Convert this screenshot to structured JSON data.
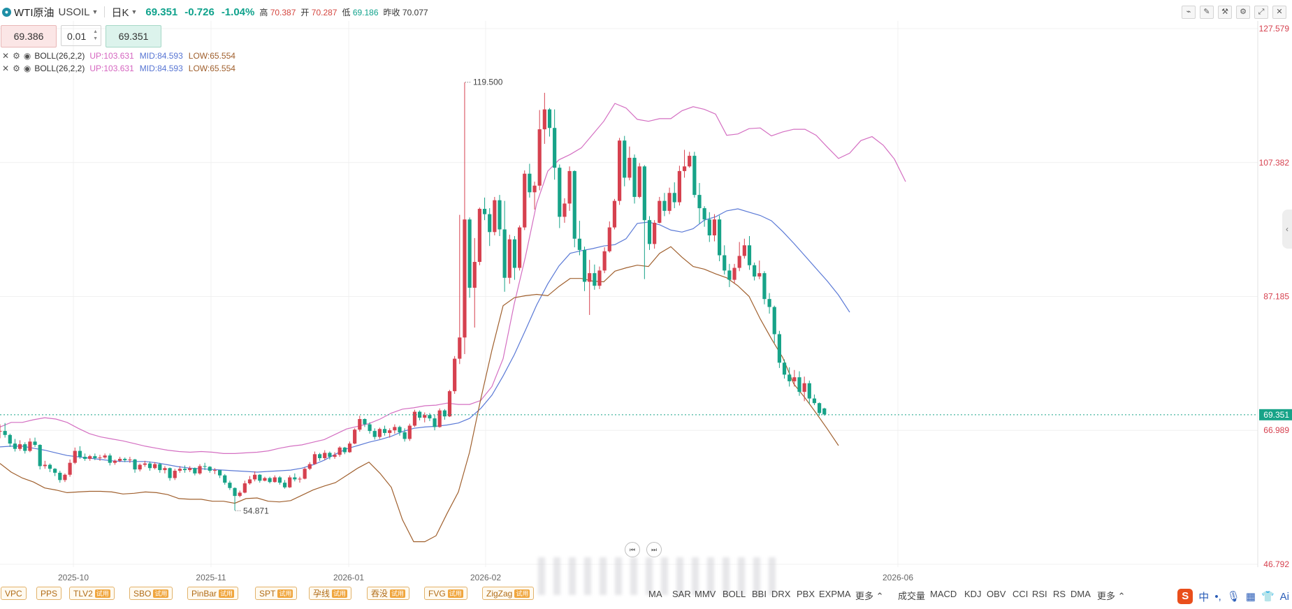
{
  "header": {
    "symbol_name": "WTI原油",
    "symbol_code": "USOIL",
    "period": "日K",
    "last_price": "69.351",
    "change": "-0.726",
    "change_pct": "-1.04%",
    "high_label": "高",
    "high_value": "70.387",
    "open_label": "开",
    "open_value": "70.287",
    "low_label": "低",
    "low_value": "69.186",
    "prev_close_label": "昨收",
    "prev_close_value": "70.077"
  },
  "order": {
    "sell_price": "69.386",
    "quantity": "0.01",
    "buy_price": "69.351"
  },
  "indicators": [
    {
      "name": "BOLL(26,2,2)",
      "up": "UP:103.631",
      "mid": "MID:84.593",
      "low": "LOW:65.554"
    },
    {
      "name": "BOLL(26,2,2)",
      "up": "UP:103.631",
      "mid": "MID:84.593",
      "low": "LOW:65.554"
    }
  ],
  "chart_data": {
    "type": "candlestick",
    "symbol": "USOIL",
    "x_tick_labels": [
      "2025-10",
      "2025-11",
      "2026-01",
      "2026-02",
      "2026-06"
    ],
    "y_tick_labels": [
      "127.579",
      "107.382",
      "87.185",
      "66.989",
      "46.792"
    ],
    "y_ticks": [
      127.579,
      107.382,
      87.185,
      66.989,
      46.792
    ],
    "ylim": [
      46.792,
      127.579
    ],
    "current_price_label": "69.351",
    "current_price": 69.351,
    "annotations": [
      {
        "text": "119.500",
        "value": 119.5
      },
      {
        "text": "54.871",
        "value": 54.871
      }
    ],
    "colors": {
      "up": "#d6414f",
      "down": "#17a388",
      "boll_up": "#d46fc2",
      "boll_mid": "#5a79d6",
      "boll_low": "#a0602e",
      "last_price_bg": "#17a388",
      "axis_text": "#d6414f"
    },
    "candles": [
      [
        66.9,
        67.9,
        65.8,
        66.9
      ],
      [
        66.9,
        68.1,
        65.9,
        66.3
      ],
      [
        66.3,
        66.5,
        64.5,
        65.0
      ],
      [
        65.0,
        65.7,
        63.8,
        64.2
      ],
      [
        64.2,
        65.5,
        63.9,
        64.9
      ],
      [
        64.9,
        65.2,
        63.5,
        63.9
      ],
      [
        63.9,
        65.8,
        63.7,
        65.3
      ],
      [
        65.3,
        65.9,
        64.5,
        64.8
      ],
      [
        64.8,
        64.9,
        61.1,
        61.6
      ],
      [
        61.6,
        62.4,
        61.2,
        61.8
      ],
      [
        61.8,
        62.0,
        60.7,
        61.2
      ],
      [
        61.2,
        61.3,
        60.1,
        60.6
      ],
      [
        60.6,
        60.9,
        59.1,
        59.5
      ],
      [
        59.5,
        60.5,
        59.2,
        60.3
      ],
      [
        60.3,
        62.6,
        60.0,
        62.1
      ],
      [
        62.1,
        64.4,
        61.9,
        63.9
      ],
      [
        63.9,
        64.6,
        62.7,
        63.0
      ],
      [
        63.0,
        63.5,
        62.4,
        62.7
      ],
      [
        62.7,
        63.3,
        62.4,
        63.1
      ],
      [
        63.1,
        63.5,
        62.5,
        62.8
      ],
      [
        62.8,
        63.3,
        62.4,
        62.9
      ],
      [
        62.9,
        63.5,
        62.7,
        63.2
      ],
      [
        63.2,
        63.5,
        61.7,
        62.1
      ],
      [
        62.1,
        62.6,
        61.8,
        62.4
      ],
      [
        62.4,
        63.0,
        62.2,
        62.7
      ],
      [
        62.7,
        62.9,
        62.2,
        62.5
      ],
      [
        62.5,
        63.0,
        62.1,
        62.6
      ],
      [
        62.6,
        62.7,
        60.6,
        61.1
      ],
      [
        61.1,
        62.0,
        60.8,
        61.8
      ],
      [
        61.8,
        62.4,
        61.5,
        62.0
      ],
      [
        62.0,
        62.3,
        60.9,
        61.3
      ],
      [
        61.3,
        62.2,
        61.1,
        61.9
      ],
      [
        61.9,
        62.1,
        60.6,
        61.0
      ],
      [
        61.0,
        61.6,
        60.5,
        61.3
      ],
      [
        61.3,
        61.4,
        59.4,
        59.8
      ],
      [
        59.8,
        61.2,
        59.5,
        60.9
      ],
      [
        60.9,
        61.6,
        60.6,
        61.2
      ],
      [
        61.2,
        61.7,
        60.6,
        61.0
      ],
      [
        61.0,
        61.6,
        60.7,
        61.3
      ],
      [
        61.3,
        61.4,
        60.2,
        60.5
      ],
      [
        60.5,
        61.9,
        60.3,
        61.6
      ],
      [
        61.6,
        62.1,
        61.0,
        61.5
      ],
      [
        61.5,
        61.6,
        60.6,
        60.9
      ],
      [
        60.9,
        61.3,
        60.4,
        61.0
      ],
      [
        61.0,
        61.0,
        59.8,
        60.2
      ],
      [
        60.2,
        60.4,
        58.8,
        59.1
      ],
      [
        59.1,
        59.4,
        58.0,
        58.3
      ],
      [
        58.3,
        58.4,
        54.9,
        57.1
      ],
      [
        57.1,
        57.9,
        56.9,
        57.6
      ],
      [
        57.6,
        59.4,
        57.5,
        59.0
      ],
      [
        59.0,
        60.1,
        58.8,
        59.6
      ],
      [
        59.6,
        60.8,
        59.3,
        60.3
      ],
      [
        60.3,
        60.4,
        59.1,
        59.4
      ],
      [
        59.4,
        60.0,
        59.3,
        59.8
      ],
      [
        59.8,
        60.0,
        59.0,
        59.2
      ],
      [
        59.2,
        60.2,
        59.1,
        59.9
      ],
      [
        59.9,
        60.1,
        58.8,
        59.1
      ],
      [
        59.1,
        59.5,
        58.2,
        58.4
      ],
      [
        58.4,
        60.2,
        58.3,
        59.9
      ],
      [
        59.9,
        60.5,
        59.3,
        59.6
      ],
      [
        59.6,
        60.0,
        59.1,
        59.7
      ],
      [
        59.7,
        61.4,
        59.6,
        61.2
      ],
      [
        61.2,
        62.2,
        61.0,
        61.9
      ],
      [
        61.9,
        63.8,
        61.8,
        63.4
      ],
      [
        63.4,
        63.6,
        62.4,
        62.8
      ],
      [
        62.8,
        64.0,
        62.5,
        63.6
      ],
      [
        63.6,
        63.8,
        62.6,
        63.0
      ],
      [
        63.0,
        63.7,
        62.7,
        63.3
      ],
      [
        63.3,
        64.6,
        63.0,
        64.4
      ],
      [
        64.4,
        64.5,
        63.4,
        63.7
      ],
      [
        63.7,
        65.3,
        63.6,
        65.0
      ],
      [
        65.0,
        67.3,
        64.9,
        67.1
      ],
      [
        67.1,
        69.2,
        66.8,
        68.7
      ],
      [
        68.7,
        68.8,
        67.5,
        67.9
      ],
      [
        67.9,
        68.2,
        66.5,
        66.9
      ],
      [
        66.9,
        67.3,
        65.6,
        66.0
      ],
      [
        66.0,
        67.4,
        65.7,
        67.2
      ],
      [
        67.2,
        67.7,
        66.2,
        66.6
      ],
      [
        66.6,
        67.3,
        65.9,
        67.0
      ],
      [
        67.0,
        67.9,
        66.5,
        67.5
      ],
      [
        67.5,
        67.7,
        66.2,
        66.7
      ],
      [
        66.7,
        67.3,
        65.3,
        65.7
      ],
      [
        65.7,
        68.0,
        65.4,
        67.7
      ],
      [
        67.7,
        70.1,
        67.5,
        69.8
      ],
      [
        69.8,
        70.0,
        68.5,
        68.9
      ],
      [
        68.9,
        69.7,
        68.2,
        69.3
      ],
      [
        69.3,
        69.6,
        68.4,
        68.8
      ],
      [
        68.8,
        69.4,
        67.0,
        67.5
      ],
      [
        67.5,
        70.3,
        67.4,
        70.0
      ],
      [
        70.0,
        70.2,
        68.6,
        69.1
      ],
      [
        69.1,
        73.1,
        69.0,
        72.9
      ],
      [
        72.9,
        78.2,
        72.5,
        77.8
      ],
      [
        77.8,
        99.5,
        77.0,
        81.0
      ],
      [
        81.0,
        119.5,
        78.5,
        98.8
      ],
      [
        98.8,
        99.1,
        87.0,
        88.5
      ],
      [
        88.5,
        96.0,
        82.5,
        92.4
      ],
      [
        92.4,
        100.6,
        91.9,
        100.4
      ],
      [
        100.4,
        102.1,
        98.7,
        99.6
      ],
      [
        99.6,
        100.5,
        94.8,
        96.9
      ],
      [
        96.9,
        102.2,
        96.4,
        101.7
      ],
      [
        101.7,
        102.5,
        96.3,
        97.3
      ],
      [
        97.3,
        101.6,
        87.9,
        90.0
      ],
      [
        90.0,
        96.5,
        89.1,
        95.8
      ],
      [
        95.8,
        96.3,
        89.7,
        91.5
      ],
      [
        91.5,
        97.9,
        91.1,
        97.6
      ],
      [
        97.6,
        106.2,
        97.2,
        105.7
      ],
      [
        105.7,
        107.2,
        102.1,
        102.9
      ],
      [
        102.9,
        104.5,
        100.3,
        103.9
      ],
      [
        103.9,
        115.3,
        103.2,
        112.4
      ],
      [
        112.4,
        117.9,
        110.2,
        115.4
      ],
      [
        115.4,
        115.6,
        111.3,
        112.6
      ],
      [
        112.6,
        115.4,
        104.8,
        106.6
      ],
      [
        106.6,
        107.1,
        97.5,
        99.2
      ],
      [
        99.2,
        102.0,
        98.3,
        101.2
      ],
      [
        101.2,
        106.8,
        100.1,
        106.1
      ],
      [
        106.1,
        106.2,
        94.6,
        95.9
      ],
      [
        95.9,
        98.6,
        93.4,
        94.2
      ],
      [
        94.2,
        94.7,
        88.0,
        89.4
      ],
      [
        89.4,
        92.7,
        84.4,
        90.7
      ],
      [
        90.7,
        92.0,
        88.2,
        88.8
      ],
      [
        88.8,
        91.7,
        88.3,
        91.1
      ],
      [
        91.1,
        94.6,
        90.7,
        94.0
      ],
      [
        94.0,
        98.5,
        93.8,
        97.6
      ],
      [
        97.6,
        101.9,
        97.3,
        101.6
      ],
      [
        101.6,
        111.1,
        101.0,
        110.7
      ],
      [
        110.7,
        111.4,
        103.8,
        105.1
      ],
      [
        105.1,
        109.8,
        104.7,
        108.1
      ],
      [
        108.1,
        108.6,
        101.2,
        102.2
      ],
      [
        102.2,
        107.3,
        102.0,
        106.8
      ],
      [
        106.8,
        107.0,
        89.8,
        98.7
      ],
      [
        98.7,
        99.3,
        94.2,
        95.1
      ],
      [
        95.1,
        98.7,
        94.4,
        98.3
      ],
      [
        98.3,
        102.2,
        98.2,
        101.6
      ],
      [
        101.6,
        102.8,
        99.3,
        100.1
      ],
      [
        100.1,
        103.6,
        99.6,
        102.8
      ],
      [
        102.8,
        104.4,
        100.5,
        101.4
      ],
      [
        101.4,
        106.9,
        100.9,
        106.1
      ],
      [
        106.1,
        109.3,
        105.1,
        106.8
      ],
      [
        106.8,
        109.0,
        106.6,
        108.4
      ],
      [
        108.4,
        109.0,
        102.1,
        102.5
      ],
      [
        102.5,
        104.3,
        98.2,
        100.5
      ],
      [
        100.5,
        100.8,
        97.7,
        98.8
      ],
      [
        98.8,
        99.9,
        95.4,
        96.4
      ],
      [
        96.4,
        99.6,
        95.5,
        98.8
      ],
      [
        98.8,
        99.4,
        92.5,
        93.4
      ],
      [
        93.4,
        94.9,
        90.5,
        91.1
      ],
      [
        91.1,
        92.1,
        88.6,
        89.7
      ],
      [
        89.7,
        92.1,
        89.2,
        91.5
      ],
      [
        91.5,
        95.4,
        91.0,
        93.3
      ],
      [
        93.3,
        95.9,
        92.9,
        94.9
      ],
      [
        94.9,
        96.3,
        91.2,
        91.9
      ],
      [
        91.9,
        92.3,
        89.6,
        90.2
      ],
      [
        90.2,
        92.6,
        89.8,
        90.7
      ],
      [
        90.7,
        91.0,
        86.0,
        86.8
      ],
      [
        86.8,
        87.7,
        84.6,
        85.6
      ],
      [
        85.6,
        85.8,
        80.2,
        81.5
      ],
      [
        81.5,
        82.0,
        76.4,
        77.2
      ],
      [
        77.2,
        77.7,
        74.8,
        75.4
      ],
      [
        75.4,
        76.5,
        73.6,
        74.4
      ],
      [
        74.4,
        76.1,
        73.6,
        75.0
      ],
      [
        75.0,
        75.9,
        72.2,
        72.8
      ],
      [
        72.8,
        75.1,
        71.4,
        74.1
      ],
      [
        74.1,
        74.5,
        71.0,
        71.8
      ],
      [
        71.8,
        72.4,
        70.8,
        71.1
      ],
      [
        71.1,
        71.2,
        69.2,
        69.6
      ],
      [
        70.3,
        70.4,
        69.2,
        69.4
      ]
    ],
    "boll_up": [
      67.5,
      68.2,
      68.2,
      68.6,
      68.9,
      68.7,
      68.2,
      67.3,
      66.5,
      66.0,
      65.7,
      65.4,
      65.0,
      64.6,
      64.3,
      64.0,
      63.8,
      63.7,
      63.8,
      63.7,
      63.5,
      63.5,
      63.6,
      63.7,
      63.9,
      64.3,
      64.6,
      64.8,
      65.2,
      65.6,
      66.4,
      67.2,
      67.6,
      68.0,
      68.7,
      69.6,
      70.2,
      70.4,
      70.7,
      70.8,
      71.1,
      70.9,
      70.9,
      71.5,
      73.6,
      77.8,
      86.1,
      93.2,
      101.2,
      106.1,
      107.8,
      108.6,
      109.6,
      111.6,
      113.6,
      116.3,
      115.6,
      113.9,
      113.6,
      114.0,
      114.0,
      115.2,
      115.8,
      115.4,
      114.7,
      111.5,
      111.7,
      112.5,
      112.6,
      111.4,
      112.0,
      112.4,
      112.4,
      111.5,
      109.7,
      108.0,
      108.8,
      110.7,
      111.3,
      110.0,
      107.9,
      104.5
    ],
    "boll_mid": [
      64.5,
      64.6,
      64.6,
      64.3,
      64.0,
      63.6,
      63.2,
      63.0,
      62.8,
      62.6,
      62.4,
      62.3,
      62.3,
      62.3,
      62.1,
      61.8,
      61.5,
      61.3,
      61.2,
      61.1,
      61.0,
      60.9,
      60.8,
      60.7,
      60.8,
      60.9,
      61.0,
      61.3,
      61.8,
      62.5,
      63.4,
      64.2,
      64.7,
      65.2,
      65.6,
      66.1,
      66.8,
      67.3,
      67.5,
      67.6,
      67.8,
      68.1,
      68.8,
      70.3,
      72.3,
      75.2,
      78.4,
      82.1,
      85.9,
      89.1,
      91.8,
      93.7,
      94.1,
      94.4,
      94.8,
      95.0,
      95.9,
      98.2,
      98.4,
      98.0,
      97.2,
      96.9,
      97.4,
      98.7,
      99.2,
      100.1,
      100.4,
      99.9,
      99.4,
      98.6,
      97.0,
      95.2,
      93.3,
      91.4,
      89.5,
      87.4,
      84.8
    ],
    "boll_low": [
      62.0,
      60.7,
      59.8,
      59.2,
      58.3,
      58.0,
      57.6,
      57.7,
      57.8,
      57.8,
      57.7,
      57.4,
      57.5,
      57.7,
      57.6,
      57.3,
      56.7,
      56.6,
      56.6,
      56.3,
      56.3,
      56.0,
      56.7,
      56.8,
      56.3,
      56.2,
      56.4,
      57.2,
      58.0,
      58.6,
      59.1,
      60.2,
      61.3,
      62.2,
      60.5,
      58.4,
      53.5,
      50.2,
      50.2,
      51.1,
      54.5,
      57.7,
      63.7,
      71.7,
      79.1,
      85.8,
      87.0,
      87.3,
      87.5,
      87.3,
      88.7,
      89.9,
      89.9,
      89.5,
      89.4,
      91.0,
      91.5,
      91.9,
      91.7,
      93.7,
      94.7,
      93.1,
      91.7,
      91.3,
      90.6,
      90.0,
      88.8,
      87.2,
      83.8,
      80.8,
      78.0,
      74.0,
      71.9,
      69.6,
      67.2,
      64.7
    ]
  },
  "bottom_left_chips": [
    {
      "label": "VPC",
      "trial": ""
    },
    {
      "label": "PPS",
      "trial": ""
    },
    {
      "label": "TLV2",
      "trial": "试用"
    },
    {
      "label": "SBO",
      "trial": "试用"
    },
    {
      "label": "PinBar",
      "trial": "试用"
    },
    {
      "label": "SPT",
      "trial": "试用"
    },
    {
      "label": "孕线",
      "trial": "试用"
    },
    {
      "label": "吞没",
      "trial": "试用"
    },
    {
      "label": "FVG",
      "trial": "试用"
    },
    {
      "label": "ZigZag",
      "trial": "试用"
    }
  ],
  "main_indicators": [
    "MA",
    "SAR",
    "MMV",
    "BOLL",
    "BBI",
    "DRX",
    "PBX",
    "EXPMA",
    "更多"
  ],
  "sub_indicators": [
    "成交量",
    "MACD",
    "KDJ",
    "OBV",
    "CCI",
    "RSI",
    "RS",
    "DMA",
    "更多"
  ],
  "tray": {
    "ime": "中",
    "punct": "•,",
    "ai": "Ai"
  }
}
